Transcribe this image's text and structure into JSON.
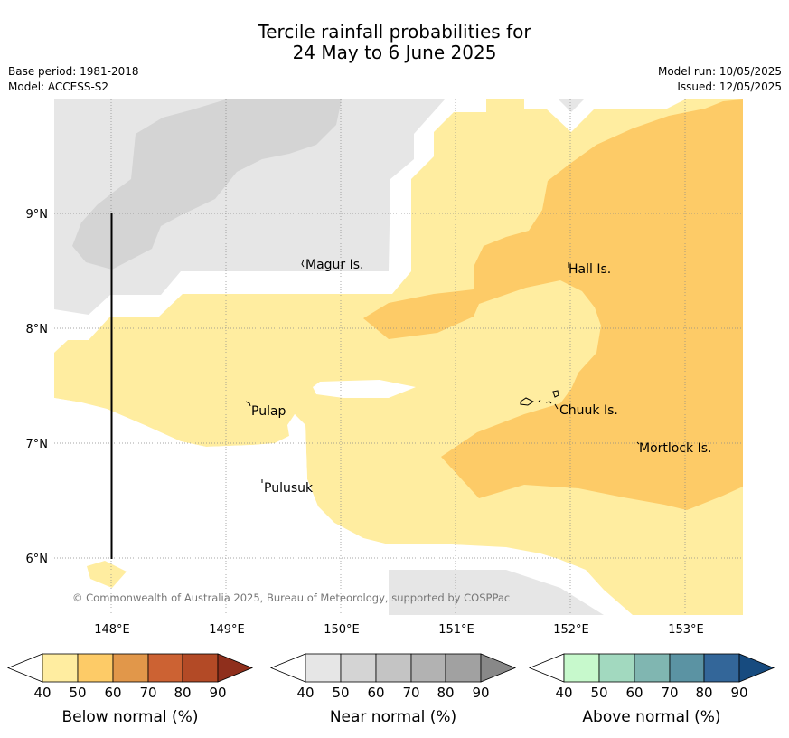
{
  "title": {
    "line1": "Tercile rainfall probabilities for",
    "line2": "24 May to 6 June 2025"
  },
  "meta": {
    "base_period": "Base period: 1981-2018",
    "model": "Model: ACCESS-S2",
    "model_run": "Model run: 10/05/2025",
    "issued": "Issued: 12/05/2025"
  },
  "map": {
    "lat_labels": [
      "9°N",
      "8°N",
      "7°N",
      "6°N"
    ],
    "lon_labels": [
      "148°E",
      "149°E",
      "150°E",
      "151°E",
      "152°E",
      "153°E"
    ],
    "places": [
      "Magur Is.",
      "Hall Is.",
      "Pulap",
      "Chuuk Is.",
      "Mortlock Is.",
      "Pulusuk"
    ],
    "copyright": "© Commonwealth of Australia 2025, Bureau of Meteorology, supported by COSPPac"
  },
  "legends": [
    {
      "label": "Below normal (%)",
      "ticks": [
        "40",
        "50",
        "60",
        "70",
        "80",
        "90"
      ],
      "colors": [
        "#ffeda0",
        "#fdcb67",
        "#e1974a",
        "#cc6233",
        "#b34a26",
        "#8f2f1c"
      ]
    },
    {
      "label": "Near normal (%)",
      "ticks": [
        "40",
        "50",
        "60",
        "70",
        "80",
        "90"
      ],
      "colors": [
        "#e6e6e6",
        "#d4d4d4",
        "#c4c4c4",
        "#b2b2b2",
        "#a1a1a1",
        "#888888"
      ]
    },
    {
      "label": "Above normal (%)",
      "ticks": [
        "40",
        "50",
        "60",
        "70",
        "80",
        "90"
      ],
      "colors": [
        "#c7f9cc",
        "#a2d9bf",
        "#80b6b1",
        "#5b93a3",
        "#336699",
        "#174b7f"
      ]
    }
  ]
}
